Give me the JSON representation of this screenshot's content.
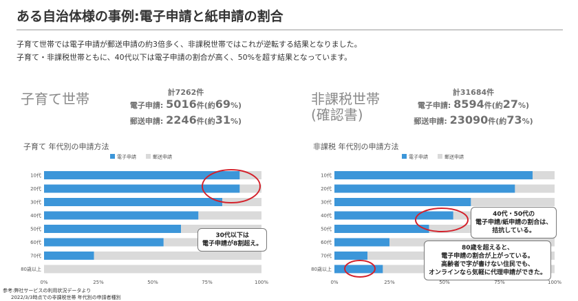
{
  "slide": {
    "title": "ある自治体様の事例:電子申請と紙申請の割合",
    "intro_line1": "子育て世帯では電子申請が郵送申請の約3倍多く、非課税世帯ではこれが逆転する結果となりました。",
    "intro_line2": "子育て・非課税世帯ともに、40代以下は電子申請の割合が高く、50%を超す結果となっています。",
    "footnote1": "参考:弊社サービスの利用状況データより",
    "footnote2": "2022/3/3時点での非課税世帯 年代別の申請者種別"
  },
  "left_group": {
    "name": "子育て世帯",
    "total": "計7262件",
    "electronic": {
      "label": "電子申請:",
      "value": "5016",
      "unit": "件(約",
      "pct": "69",
      "end": "%)"
    },
    "postal": {
      "label": "郵送申請:",
      "value": "2246",
      "unit": "件(約",
      "pct": "31",
      "end": "%)"
    },
    "callout": [
      "30代以下は",
      "電子申請が8割超え。"
    ]
  },
  "right_group": {
    "name_line1": "非課税世帯",
    "name_line2": "(確認書)",
    "total": "計31684件",
    "electronic": {
      "label": "電子申請:",
      "value": "8594",
      "unit": "件(約",
      "pct": "27",
      "end": "%)"
    },
    "postal": {
      "label": "郵送申請:",
      "value": "23090",
      "unit": "件(約",
      "pct": "73",
      "end": "%)"
    },
    "callout1": [
      "40代・50代の",
      "電子申請/紙申請の割合は、",
      "拮抗している。"
    ],
    "callout2": [
      "80歳を超えると、",
      "電子申請の割合が上がっている。",
      "高齢者で字が書けない住民でも、",
      "オンラインなら気軽に代理申請ができた。"
    ]
  },
  "colors": {
    "electronic": "#3c96d9",
    "postal": "#dadada",
    "highlight": "#d4202a"
  },
  "chart_data": [
    {
      "type": "bar",
      "orientation": "horizontal",
      "stacked": true,
      "title": "子育て 年代別の申請方法",
      "categories": [
        "10代",
        "20代",
        "30代",
        "40代",
        "50代",
        "60代",
        "70代",
        "80歳以上"
      ],
      "series": [
        {
          "name": "電子申請",
          "values": [
            90,
            90,
            82,
            71,
            63,
            55,
            23,
            0
          ]
        },
        {
          "name": "郵送申請",
          "values": [
            10,
            10,
            18,
            29,
            37,
            45,
            77,
            100
          ]
        }
      ],
      "xlim": [
        0,
        100
      ],
      "xticks": [
        "0%",
        "25%",
        "50%",
        "75%",
        "100%"
      ],
      "legend": "top-left"
    },
    {
      "type": "bar",
      "orientation": "horizontal",
      "stacked": true,
      "title": "非課税 年代別の申請方法",
      "categories": [
        "10代",
        "20代",
        "30代",
        "40代",
        "50代",
        "60代",
        "70代",
        "80歳以上"
      ],
      "series": [
        {
          "name": "電子申請",
          "values": [
            90,
            82,
            62,
            54,
            43,
            25,
            15,
            22
          ]
        },
        {
          "name": "郵送申請",
          "values": [
            10,
            18,
            38,
            46,
            57,
            75,
            85,
            78
          ]
        }
      ],
      "xlim": [
        0,
        100
      ],
      "xticks": [
        "0%",
        "25%",
        "50%",
        "75%",
        "100%"
      ],
      "legend": "top-left"
    }
  ]
}
